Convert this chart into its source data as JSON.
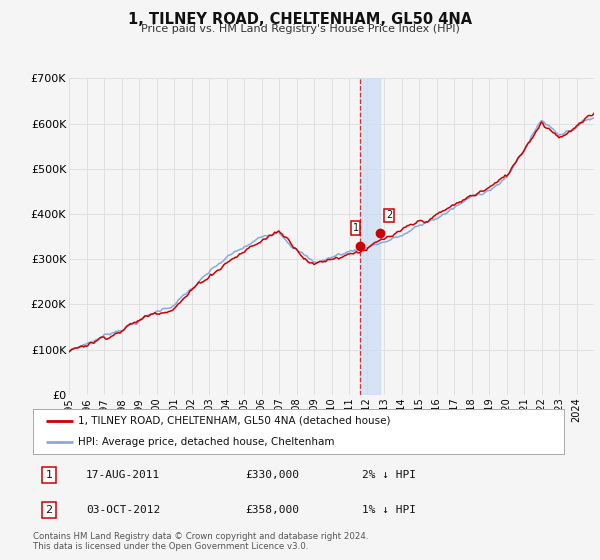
{
  "title": "1, TILNEY ROAD, CHELTENHAM, GL50 4NA",
  "subtitle": "Price paid vs. HM Land Registry's House Price Index (HPI)",
  "ylim": [
    0,
    700000
  ],
  "xlim_start": 1995.0,
  "xlim_end": 2025.0,
  "yticks": [
    0,
    100000,
    200000,
    300000,
    400000,
    500000,
    600000,
    700000
  ],
  "ytick_labels": [
    "£0",
    "£100K",
    "£200K",
    "£300K",
    "£400K",
    "£500K",
    "£600K",
    "£700K"
  ],
  "xticks": [
    1995,
    1996,
    1997,
    1998,
    1999,
    2000,
    2001,
    2002,
    2003,
    2004,
    2005,
    2006,
    2007,
    2008,
    2009,
    2010,
    2011,
    2012,
    2013,
    2014,
    2015,
    2016,
    2017,
    2018,
    2019,
    2020,
    2021,
    2022,
    2023,
    2024
  ],
  "hpi_color": "#88aadd",
  "price_color": "#cc0000",
  "bg_color": "#f5f5f5",
  "grid_color": "#dddddd",
  "transaction1_x": 2011.63,
  "transaction1_y": 330000,
  "transaction2_x": 2012.75,
  "transaction2_y": 358000,
  "vline_color": "#cc3333",
  "shade_color": "#ccddf5",
  "legend_label_price": "1, TILNEY ROAD, CHELTENHAM, GL50 4NA (detached house)",
  "legend_label_hpi": "HPI: Average price, detached house, Cheltenham",
  "table_row1_num": "1",
  "table_row1_date": "17-AUG-2011",
  "table_row1_price": "£330,000",
  "table_row1_hpi": "2% ↓ HPI",
  "table_row2_num": "2",
  "table_row2_date": "03-OCT-2012",
  "table_row2_price": "£358,000",
  "table_row2_hpi": "1% ↓ HPI",
  "footer": "Contains HM Land Registry data © Crown copyright and database right 2024.\nThis data is licensed under the Open Government Licence v3.0."
}
